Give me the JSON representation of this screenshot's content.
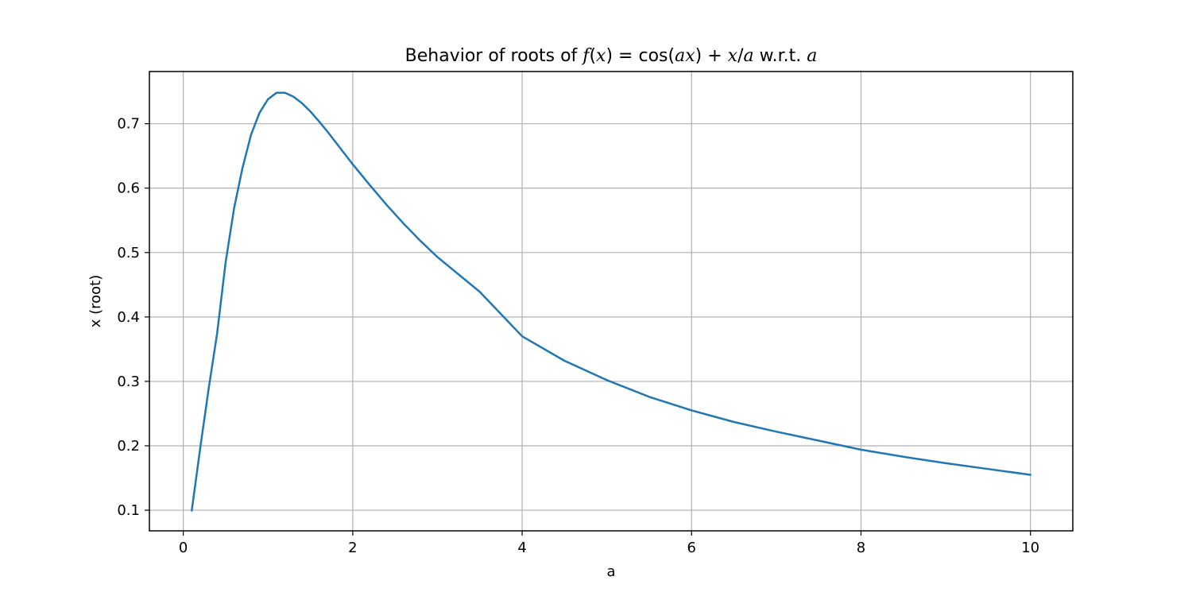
{
  "chart_data": {
    "type": "line",
    "title": {
      "prefix": "Behavior of roots of ",
      "f": "f",
      "open": "(",
      "x1": "x",
      "close_eq": ") = ",
      "cos": "cos",
      "cos_open": "(",
      "ax": "ax",
      "cos_close_plus": ") + ",
      "x2": "x",
      "slash": "/",
      "a1": "a",
      "wrt": " w.r.t. ",
      "a2": "a"
    },
    "xlabel": "a",
    "ylabel": "x (root)",
    "xlim": [
      -0.4,
      10.5
    ],
    "ylim": [
      0.068,
      0.781
    ],
    "xticks": [
      0,
      2,
      4,
      6,
      8,
      10
    ],
    "yticks": [
      0.1,
      0.2,
      0.3,
      0.4,
      0.5,
      0.6,
      0.7
    ],
    "grid": true,
    "series": [
      {
        "color": "#1f77b4",
        "x": [
          0.1,
          0.2,
          0.3,
          0.4,
          0.5,
          0.6,
          0.7,
          0.8,
          0.9,
          1.0,
          1.1,
          1.2,
          1.3,
          1.4,
          1.5,
          1.6,
          1.7,
          1.8,
          2.0,
          2.2,
          2.4,
          2.6,
          2.8,
          3.0,
          3.5,
          4.0,
          4.5,
          5.0,
          5.5,
          6.0,
          6.5,
          7.0,
          7.5,
          8.0,
          8.5,
          9.0,
          9.5,
          10.0
        ],
        "y": [
          0.0995,
          0.1966,
          0.289,
          0.375,
          0.485,
          0.569,
          0.632,
          0.683,
          0.717,
          0.738,
          0.748,
          0.748,
          0.742,
          0.732,
          0.719,
          0.704,
          0.688,
          0.671,
          0.637,
          0.605,
          0.574,
          0.545,
          0.518,
          0.493,
          0.439,
          0.37,
          0.332,
          0.302,
          0.276,
          0.255,
          0.237,
          0.222,
          0.208,
          0.194,
          0.183,
          0.173,
          0.164,
          0.155
        ]
      }
    ]
  }
}
